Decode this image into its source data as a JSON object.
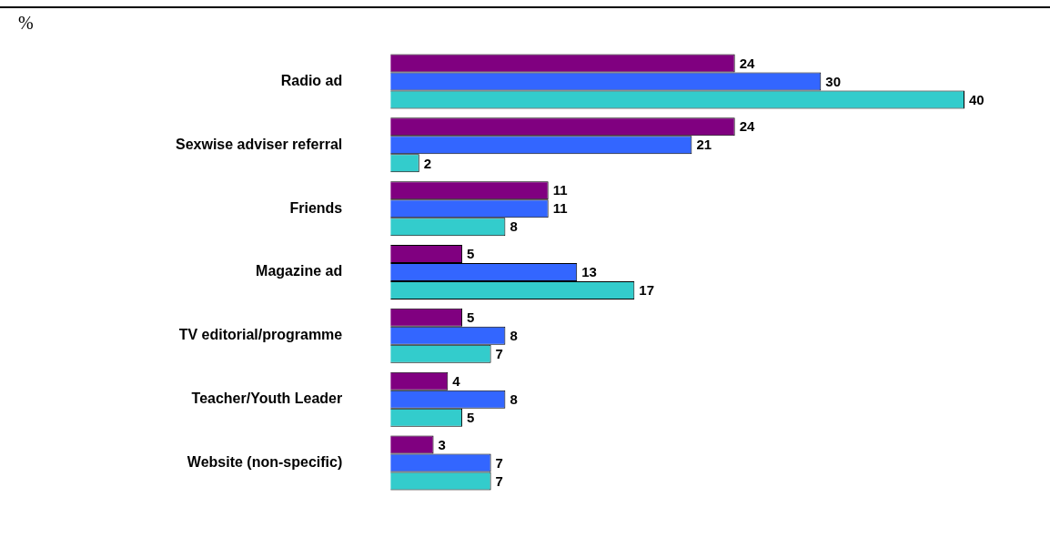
{
  "chart_data": {
    "type": "bar",
    "orientation": "horizontal",
    "categories": [
      "Radio ad",
      "Sexwise adviser referral",
      "Friends",
      "Magazine ad",
      "TV editorial/programme",
      "Teacher/Youth Leader",
      "Website (non-specific)"
    ],
    "series": [
      {
        "color": "#800080",
        "values": [
          24,
          24,
          11,
          5,
          5,
          4,
          3
        ]
      },
      {
        "color": "#3366ff",
        "values": [
          30,
          21,
          11,
          13,
          8,
          8,
          7
        ]
      },
      {
        "color": "#33cccc",
        "values": [
          40,
          2,
          8,
          17,
          7,
          5,
          7
        ]
      }
    ],
    "xlim": [
      0,
      40
    ],
    "data_labels": true,
    "legend": false,
    "annotations": [
      "%"
    ]
  }
}
